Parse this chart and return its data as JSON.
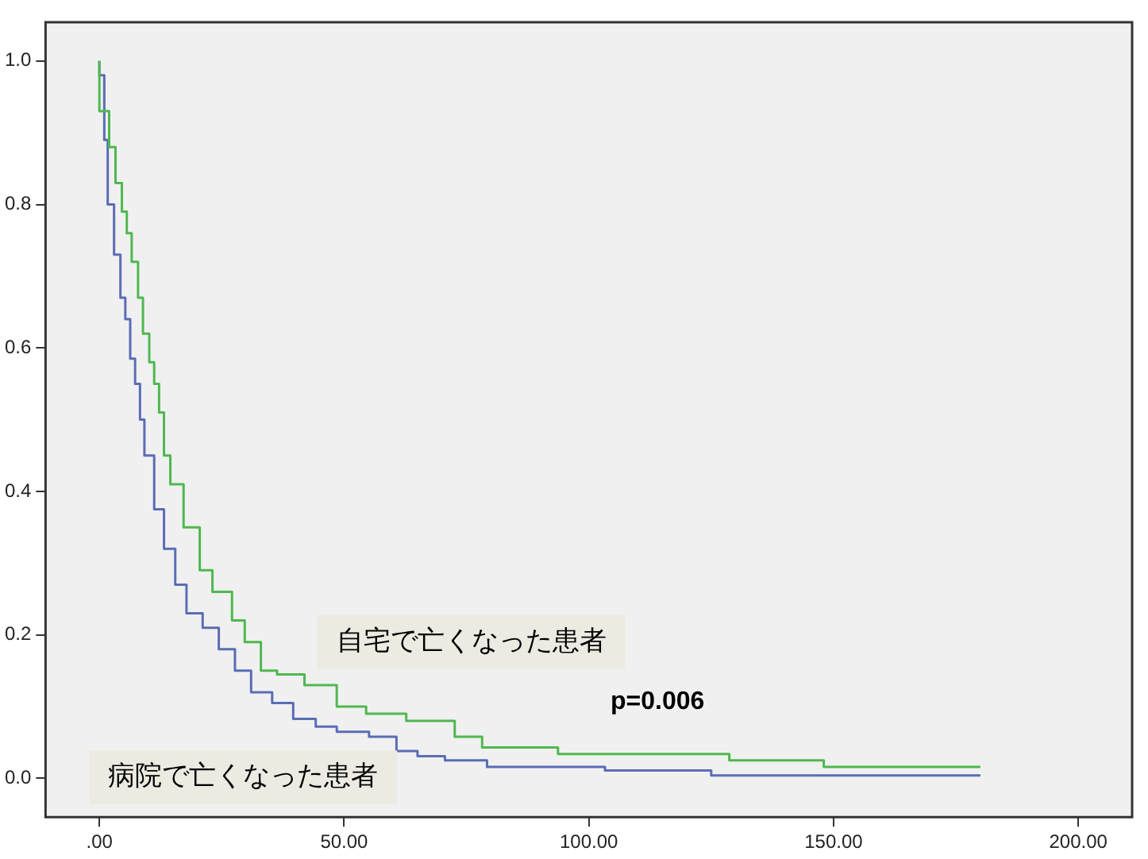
{
  "chart_data": {
    "type": "step",
    "annotations": [
      "p=0.006"
    ],
    "legend": false,
    "grid": false,
    "xlim": [
      -11,
      211
    ],
    "xticks": [
      {
        "value": 0,
        "label": ".00"
      },
      {
        "value": 50,
        "label": "50.00"
      },
      {
        "value": 100,
        "label": "100.00"
      },
      {
        "value": 150,
        "label": "150.00"
      },
      {
        "value": 200,
        "label": "200.00"
      }
    ],
    "ylim": [
      -0.054,
      1.054
    ],
    "yticks": [
      {
        "value": 0,
        "label": "0.0"
      },
      {
        "value": 0.2,
        "label": "0.2"
      },
      {
        "value": 0.4,
        "label": "0.4"
      },
      {
        "value": 0.6,
        "label": "0.6"
      },
      {
        "value": 0.8,
        "label": "0.8"
      },
      {
        "value": 1,
        "label": "1.0"
      }
    ],
    "series": [
      {
        "name": "自宅で亡くなった患者",
        "color": "#4fb84f",
        "x": [
          0,
          2,
          3.3,
          4.6,
          5.6,
          6.6,
          7.9,
          8.9,
          10.2,
          11.2,
          12.2,
          13.2,
          14.5,
          17.2,
          20.5,
          23.1,
          27.1,
          29.7,
          33,
          36.3,
          41.9,
          48.5,
          54.5,
          62.7,
          72.6,
          78.2,
          93.7,
          128.7,
          148,
          178,
          180
        ],
        "values": [
          1,
          0.93,
          0.88,
          0.83,
          0.79,
          0.76,
          0.72,
          0.67,
          0.62,
          0.58,
          0.55,
          0.51,
          0.45,
          0.41,
          0.35,
          0.29,
          0.26,
          0.22,
          0.19,
          0.15,
          0.145,
          0.13,
          0.1,
          0.09,
          0.08,
          0.058,
          0.043,
          0.034,
          0.025,
          0.016,
          0.016
        ]
      },
      {
        "name": "病院で亡くなった患者",
        "color": "#5a6db5",
        "x": [
          0,
          1,
          1.7,
          3,
          4.3,
          5.3,
          6.3,
          7.3,
          8.3,
          9.2,
          11.2,
          13.2,
          15.5,
          17.8,
          21.1,
          24.4,
          27.7,
          31,
          35.3,
          39.6,
          44.2,
          48.5,
          55.1,
          60.7,
          65,
          70.6,
          79.2,
          103.3,
          125,
          161.7,
          180
        ],
        "values": [
          1,
          0.98,
          0.89,
          0.8,
          0.73,
          0.67,
          0.64,
          0.585,
          0.55,
          0.5,
          0.45,
          0.375,
          0.32,
          0.27,
          0.23,
          0.21,
          0.18,
          0.15,
          0.12,
          0.105,
          0.083,
          0.072,
          0.065,
          0.058,
          0.038,
          0.031,
          0.025,
          0.016,
          0.011,
          0.004,
          0.004
        ]
      }
    ]
  }
}
